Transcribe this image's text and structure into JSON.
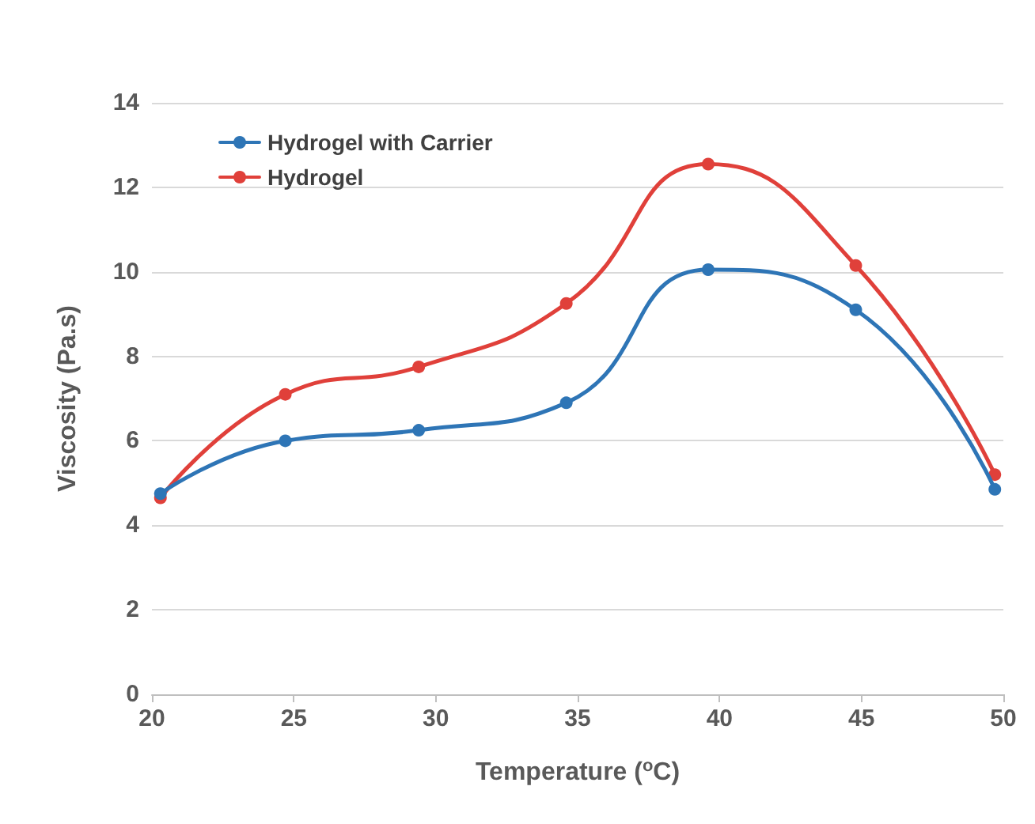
{
  "chart_data": {
    "type": "line",
    "xlabel": "Temperature ($^{o}$C)",
    "ylabel": "Viscosity (Pa.s)",
    "xlim": [
      20,
      50
    ],
    "xticks": [
      20,
      25,
      30,
      35,
      40,
      45,
      50
    ],
    "ylim": [
      0,
      14
    ],
    "yticks": [
      0,
      2,
      4,
      6,
      8,
      10,
      12,
      14
    ],
    "grid": "y",
    "legend": "top left",
    "marker": "circle",
    "line_style": "solid",
    "series": [
      {
        "name": "Hydrogel with Carrier",
        "color": "#2e75b6",
        "x": [
          20.3,
          24.7,
          29.4,
          34.6,
          39.6,
          44.8,
          49.7
        ],
        "values": [
          4.75,
          6.0,
          6.25,
          6.9,
          10.05,
          9.1,
          4.85
        ]
      },
      {
        "name": "Hydrogel",
        "color": "#e0403a",
        "x": [
          20.3,
          24.7,
          29.4,
          34.6,
          39.6,
          44.8,
          49.7
        ],
        "values": [
          4.65,
          7.1,
          7.75,
          9.25,
          12.55,
          10.15,
          5.2
        ]
      }
    ]
  }
}
